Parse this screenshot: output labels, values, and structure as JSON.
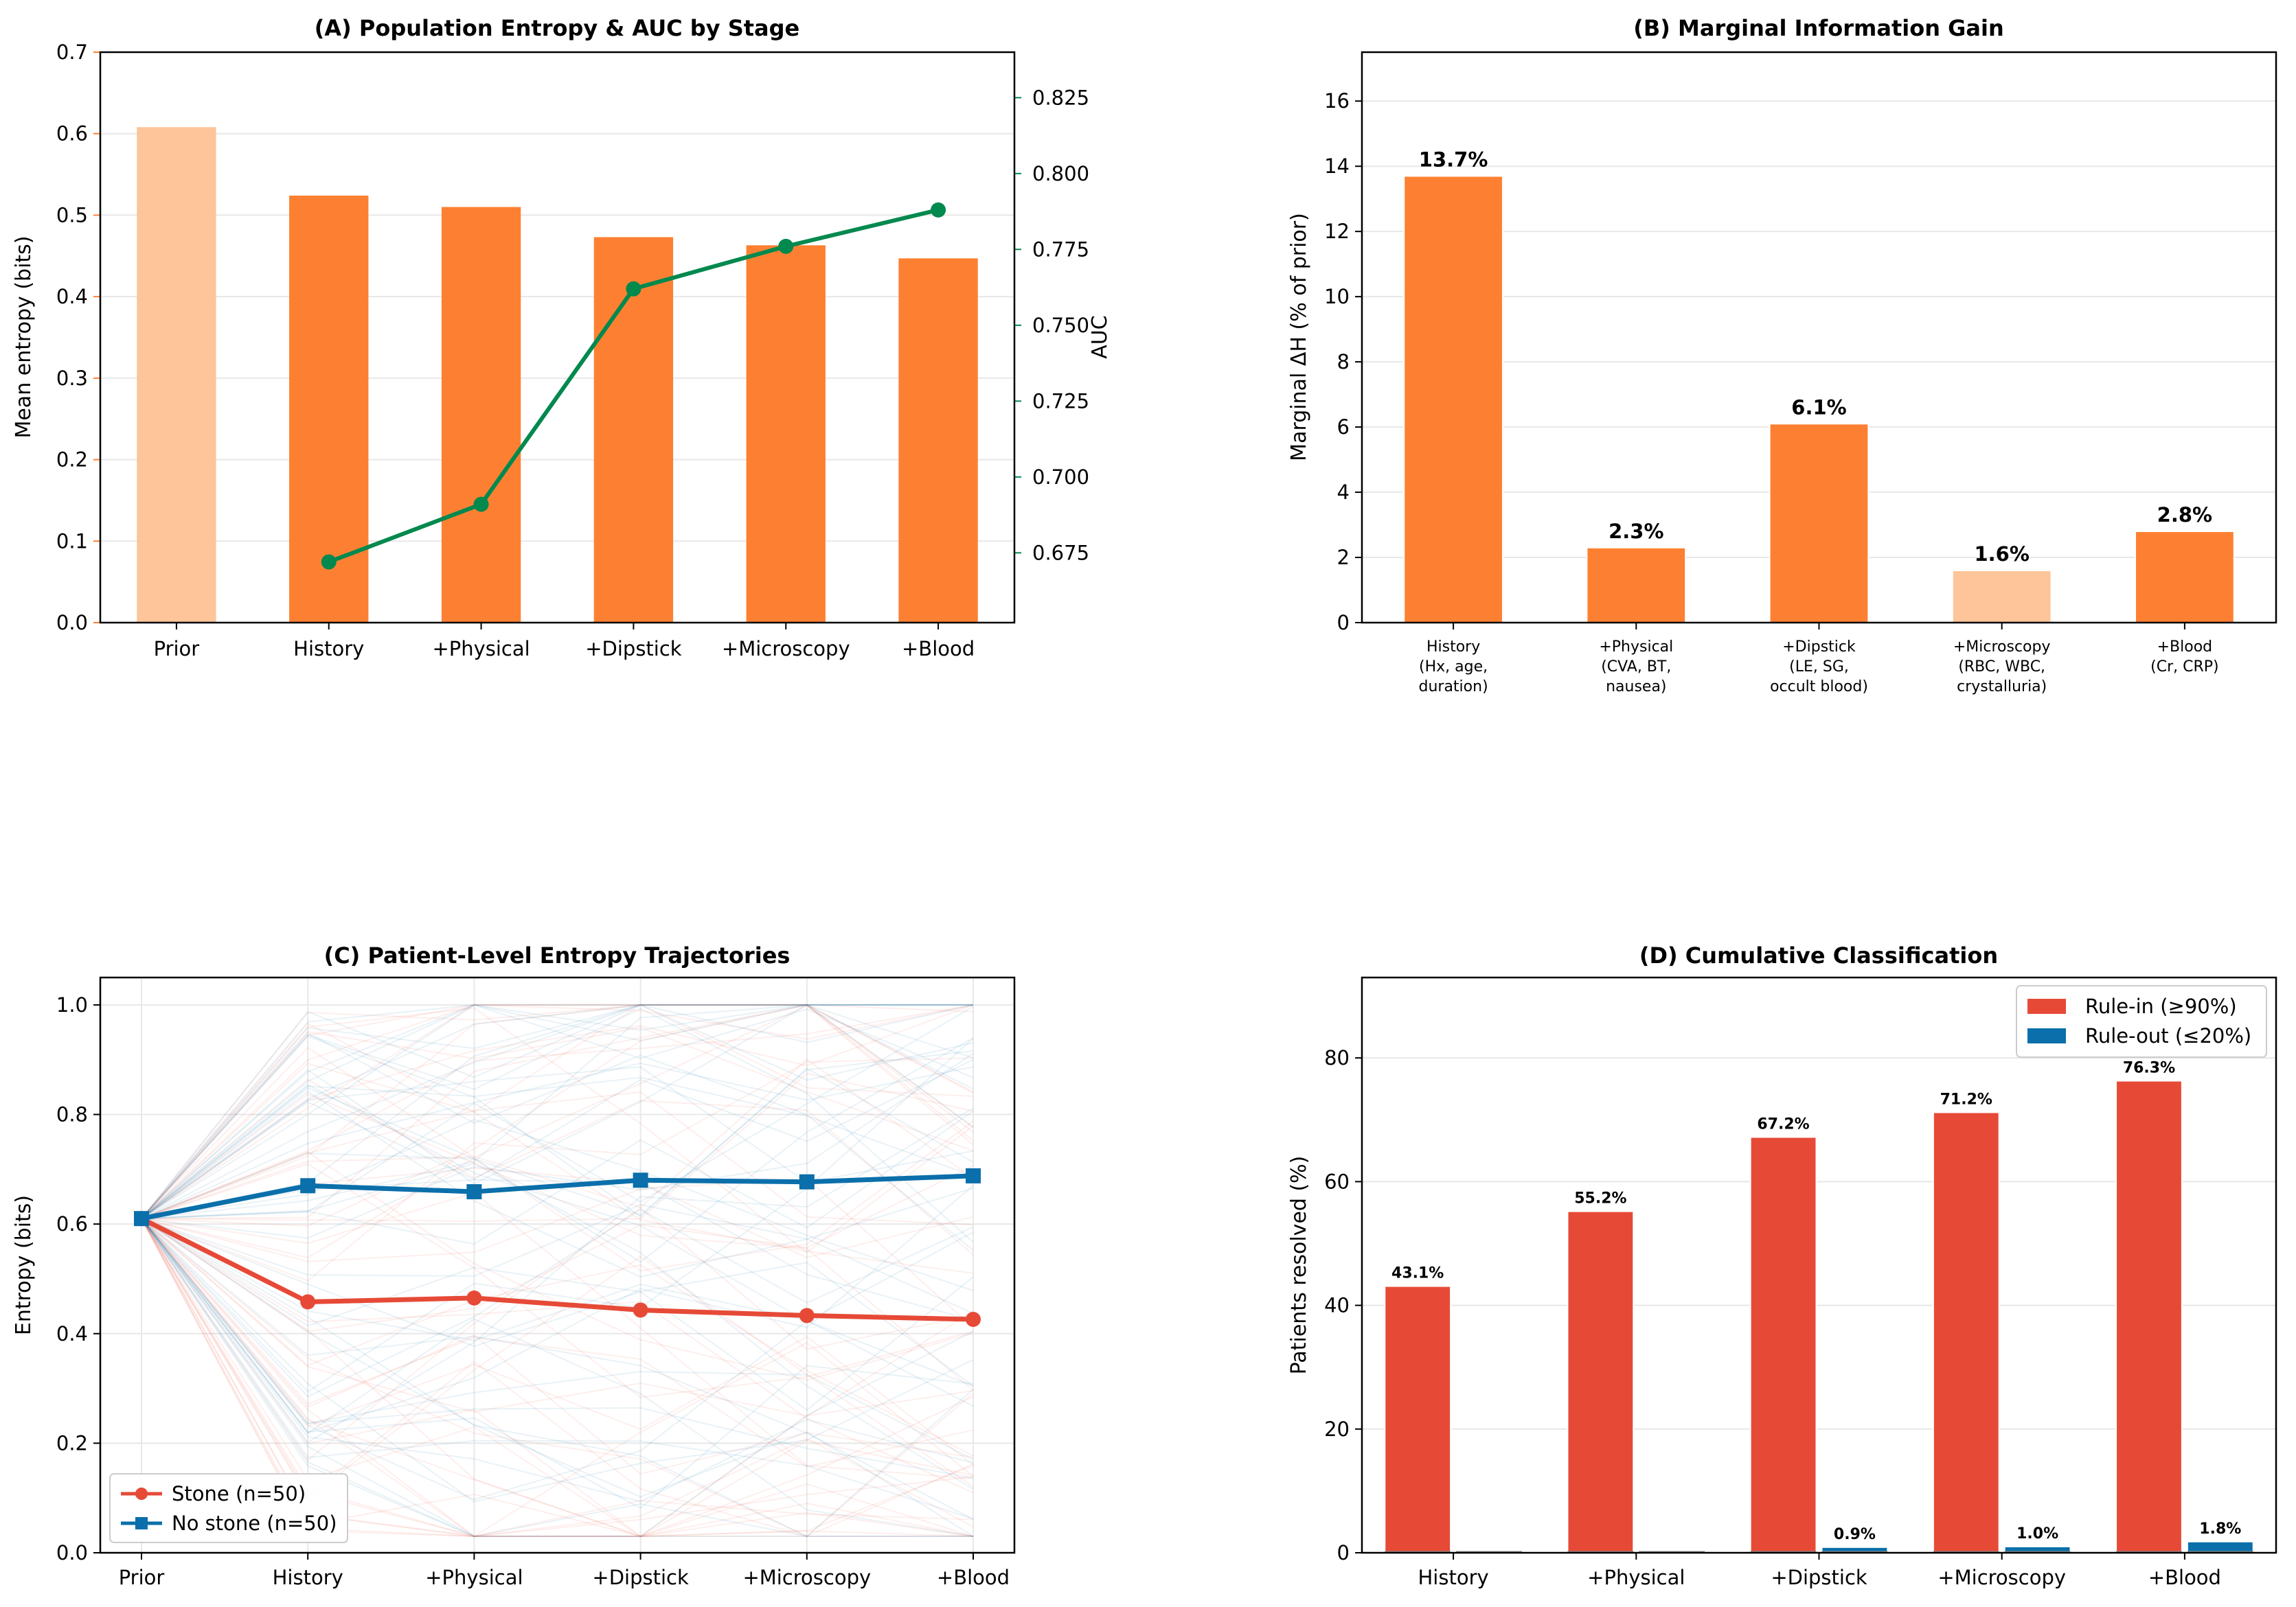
{
  "colors": {
    "orange": "#fd8032",
    "orange_light": "#fdc599",
    "green": "#02894e",
    "red": "#e64a37",
    "blue": "#0a6faa",
    "grid": "#e8e8e8"
  },
  "chart_data": [
    {
      "id": "A",
      "type": "bar",
      "title": "(A) Population Entropy & AUC by Stage",
      "categories": [
        "Prior",
        "History",
        "+Physical",
        "+Dipstick",
        "+Microscopy",
        "+Blood"
      ],
      "series": [
        {
          "values": [
            0.608,
            0.524,
            0.51,
            0.473,
            0.463,
            0.447
          ],
          "axis": "left",
          "colors": [
            "orange_light",
            "orange",
            "orange",
            "orange",
            "orange",
            "orange"
          ]
        },
        {
          "type": "line",
          "values": [
            null,
            0.672,
            0.691,
            0.762,
            0.776,
            0.788
          ],
          "axis": "right",
          "color": "green",
          "marker": "circle"
        }
      ],
      "ylabel": "Mean entropy (bits)",
      "ylim": [
        0,
        0.7
      ],
      "yticks": [
        "0.0",
        "0.1",
        "0.2",
        "0.3",
        "0.4",
        "0.5",
        "0.6",
        "0.7"
      ],
      "ylabel_right": "AUC",
      "ylim_right": [
        0.652,
        0.84
      ],
      "yticks_right": [
        "0.675",
        "0.700",
        "0.725",
        "0.750",
        "0.775",
        "0.800",
        "0.825"
      ],
      "grid": "y"
    },
    {
      "id": "B",
      "type": "bar",
      "title": "(B) Marginal Information Gain",
      "categories": [
        [
          "History",
          "(Hx, age,",
          "duration)"
        ],
        [
          "+Physical",
          "(CVA, BT,",
          "nausea)"
        ],
        [
          "+Dipstick",
          "(LE, SG,",
          "occult blood)"
        ],
        [
          "+Microscopy",
          "(RBC, WBC,",
          "crystalluria)"
        ],
        [
          "+Blood",
          "(Cr, CRP)"
        ]
      ],
      "values": [
        13.7,
        2.3,
        6.1,
        1.6,
        2.8
      ],
      "data_labels": [
        "13.7%",
        "2.3%",
        "6.1%",
        "1.6%",
        "2.8%"
      ],
      "colors": [
        "orange",
        "orange",
        "orange",
        "orange_light",
        "orange"
      ],
      "ylabel": "Marginal ΔH (% of prior)",
      "ylim": [
        0,
        17.5
      ],
      "yticks": [
        "0",
        "2",
        "4",
        "6",
        "8",
        "10",
        "12",
        "14",
        "16"
      ],
      "grid": "y"
    },
    {
      "id": "C",
      "type": "line",
      "title": "(C) Patient-Level Entropy Trajectories",
      "categories": [
        "Prior",
        "History",
        "+Physical",
        "+Dipstick",
        "+Microscopy",
        "+Blood"
      ],
      "series": [
        {
          "name": "Stone (n=50)",
          "values": [
            0.61,
            0.458,
            0.465,
            0.443,
            0.433,
            0.426
          ],
          "color": "red",
          "marker": "circle"
        },
        {
          "name": "No stone (n=50)",
          "values": [
            0.61,
            0.67,
            0.659,
            0.68,
            0.677,
            0.688
          ],
          "color": "blue",
          "marker": "square"
        }
      ],
      "background_trajectories": "individual patient trajectories (faint, 50 per group)",
      "ylabel": "Entropy (bits)",
      "ylim": [
        0,
        1.05
      ],
      "yticks": [
        "0.0",
        "0.2",
        "0.4",
        "0.6",
        "0.8",
        "1.0"
      ],
      "legend": "lower-left",
      "grid": "both"
    },
    {
      "id": "D",
      "type": "bar",
      "title": "(D) Cumulative Classification",
      "categories": [
        "History",
        "+Physical",
        "+Dipstick",
        "+Microscopy",
        "+Blood"
      ],
      "series": [
        {
          "name": "Rule-in (≥90%)",
          "values": [
            43.1,
            55.2,
            67.2,
            71.2,
            76.3
          ],
          "labels": [
            "43.1%",
            "55.2%",
            "67.2%",
            "71.2%",
            "76.3%"
          ],
          "color": "red"
        },
        {
          "name": "Rule-out (≤20%)",
          "values": [
            0,
            0,
            0.9,
            1.0,
            1.8
          ],
          "labels": [
            "",
            "",
            "0.9%",
            "1.0%",
            "1.8%"
          ],
          "color": "blue"
        }
      ],
      "ylabel": "Patients resolved (%)",
      "ylim": [
        0,
        93
      ],
      "yticks": [
        "0",
        "20",
        "40",
        "60",
        "80"
      ],
      "legend": "top-right",
      "grid": "y"
    }
  ]
}
